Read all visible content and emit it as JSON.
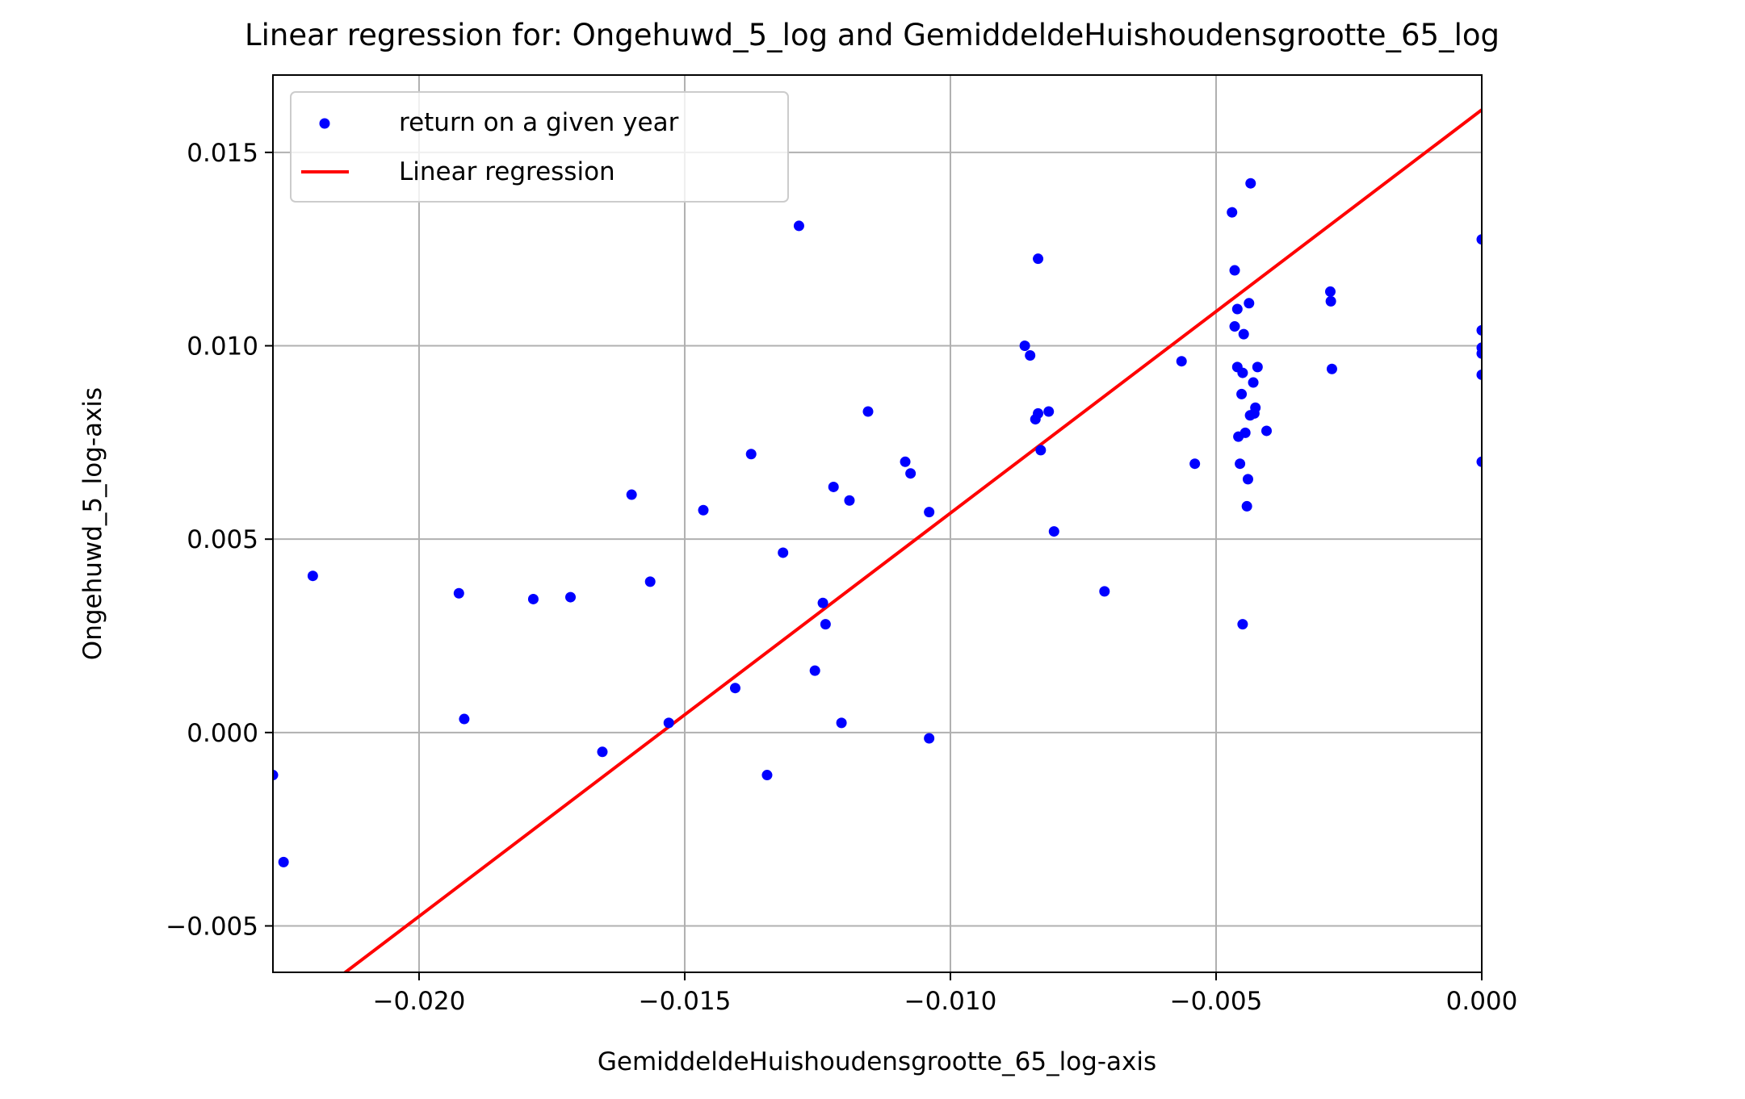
{
  "chart_data": {
    "type": "scatter",
    "title": "Linear regression for: Ongehuwd_5_log and GemiddeldeHuishoudensgrootte_65_log",
    "xlabel": "GemiddeldeHuishoudensgrootte_65_log-axis",
    "ylabel": "Ongehuwd_5_log-axis",
    "xlim": [
      -0.02275,
      0.0
    ],
    "ylim": [
      -0.0062,
      0.017
    ],
    "x_ticks": [
      -0.02,
      -0.015,
      -0.01,
      -0.005,
      0.0
    ],
    "x_tick_labels": [
      "−0.020",
      "−0.015",
      "−0.010",
      "−0.005",
      "0.000"
    ],
    "y_ticks": [
      -0.005,
      0.0,
      0.005,
      0.01,
      0.015
    ],
    "y_tick_labels": [
      "−0.005",
      "0.000",
      "0.005",
      "0.010",
      "0.015"
    ],
    "grid": true,
    "legend_position": "top-left",
    "series": [
      {
        "name": "return on a given year",
        "kind": "scatter",
        "color": "#0000ff",
        "points": [
          [
            -0.02275,
            -0.0011
          ],
          [
            -0.02255,
            -0.00335
          ],
          [
            -0.022,
            0.00405
          ],
          [
            -0.01925,
            0.0036
          ],
          [
            -0.01915,
            0.00035
          ],
          [
            -0.01785,
            0.00345
          ],
          [
            -0.01715,
            0.0035
          ],
          [
            -0.01655,
            -0.0005
          ],
          [
            -0.016,
            0.00615
          ],
          [
            -0.01565,
            0.0039
          ],
          [
            -0.0153,
            0.00025
          ],
          [
            -0.01465,
            0.00575
          ],
          [
            -0.01405,
            0.00115
          ],
          [
            -0.01375,
            0.0072
          ],
          [
            -0.01345,
            -0.0011
          ],
          [
            -0.01315,
            0.00465
          ],
          [
            -0.01285,
            0.0131
          ],
          [
            -0.01255,
            0.0016
          ],
          [
            -0.0124,
            0.00335
          ],
          [
            -0.01235,
            0.0028
          ],
          [
            -0.0122,
            0.00635
          ],
          [
            -0.01205,
            0.00025
          ],
          [
            -0.0119,
            0.006
          ],
          [
            -0.01155,
            0.0083
          ],
          [
            -0.01085,
            0.007
          ],
          [
            -0.01075,
            0.0067
          ],
          [
            -0.0104,
            0.0057
          ],
          [
            -0.0104,
            -0.00015
          ],
          [
            -0.0086,
            0.01
          ],
          [
            -0.0085,
            0.00975
          ],
          [
            -0.0084,
            0.0081
          ],
          [
            -0.00835,
            0.00825
          ],
          [
            -0.00835,
            0.01225
          ],
          [
            -0.0083,
            0.0073
          ],
          [
            -0.00815,
            0.0083
          ],
          [
            -0.00805,
            0.0052
          ],
          [
            -0.0071,
            0.00365
          ],
          [
            -0.00565,
            0.0096
          ],
          [
            -0.0054,
            0.00695
          ],
          [
            -0.0047,
            0.01345
          ],
          [
            -0.00465,
            0.01195
          ],
          [
            -0.00465,
            0.0105
          ],
          [
            -0.0046,
            0.01095
          ],
          [
            -0.0046,
            0.00945
          ],
          [
            -0.00458,
            0.00765
          ],
          [
            -0.00455,
            0.00695
          ],
          [
            -0.00452,
            0.00875
          ],
          [
            -0.0045,
            0.0093
          ],
          [
            -0.0045,
            0.0028
          ],
          [
            -0.00448,
            0.0103
          ],
          [
            -0.00445,
            0.00775
          ],
          [
            -0.00442,
            0.00585
          ],
          [
            -0.0044,
            0.00655
          ],
          [
            -0.00438,
            0.0111
          ],
          [
            -0.00436,
            0.0082
          ],
          [
            -0.00435,
            0.0142
          ],
          [
            -0.0043,
            0.00905
          ],
          [
            -0.00428,
            0.00825
          ],
          [
            -0.00426,
            0.0084
          ],
          [
            -0.00422,
            0.00945
          ],
          [
            -0.00405,
            0.0078
          ],
          [
            -0.00285,
            0.0114
          ],
          [
            -0.00284,
            0.01115
          ],
          [
            -0.00282,
            0.0094
          ],
          [
            0.0,
            0.01275
          ],
          [
            0.0,
            0.0104
          ],
          [
            0.0,
            0.00995
          ],
          [
            0.0,
            0.0098
          ],
          [
            0.0,
            0.00925
          ],
          [
            0.0,
            0.007
          ]
        ]
      },
      {
        "name": "Linear regression",
        "kind": "line",
        "color": "#ff0000",
        "points": [
          [
            -0.02275,
            -0.00762
          ],
          [
            0.0,
            0.0161
          ]
        ]
      }
    ]
  }
}
